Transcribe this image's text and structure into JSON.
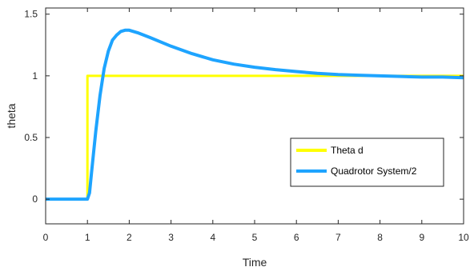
{
  "chart_data": {
    "type": "line",
    "xlabel": "Time",
    "ylabel": "theta",
    "xlim": [
      0,
      10
    ],
    "ylim": [
      -0.2,
      1.55
    ],
    "x_ticks": [
      0,
      1,
      2,
      3,
      4,
      5,
      6,
      7,
      8,
      9,
      10
    ],
    "y_ticks": [
      0,
      0.5,
      1,
      1.5
    ],
    "x_tick_labels": [
      "0",
      "1",
      "2",
      "3",
      "4",
      "5",
      "6",
      "7",
      "8",
      "9",
      "10"
    ],
    "y_tick_labels": [
      "0",
      "0.5",
      "1",
      "1.5"
    ],
    "grid": false,
    "legend_position": "bottom-right",
    "series": [
      {
        "name": "Theta d",
        "color": "#ffff00",
        "x": [
          0,
          1,
          1,
          10
        ],
        "y": [
          0,
          0,
          1,
          1
        ]
      },
      {
        "name": "Quadrotor System/2",
        "color": "#1ea4ff",
        "x": [
          0,
          1,
          1.05,
          1.1,
          1.2,
          1.3,
          1.4,
          1.5,
          1.6,
          1.7,
          1.8,
          1.9,
          2.0,
          2.2,
          2.5,
          3.0,
          3.5,
          4.0,
          4.5,
          5.0,
          5.5,
          6.0,
          6.5,
          7.0,
          7.5,
          8.0,
          8.5,
          9.0,
          9.5,
          10.0
        ],
        "y": [
          0,
          0,
          0.05,
          0.22,
          0.55,
          0.84,
          1.06,
          1.2,
          1.29,
          1.33,
          1.36,
          1.37,
          1.37,
          1.35,
          1.31,
          1.24,
          1.18,
          1.13,
          1.095,
          1.07,
          1.05,
          1.035,
          1.02,
          1.01,
          1.005,
          1.0,
          0.995,
          0.99,
          0.99,
          0.985
        ]
      }
    ]
  }
}
